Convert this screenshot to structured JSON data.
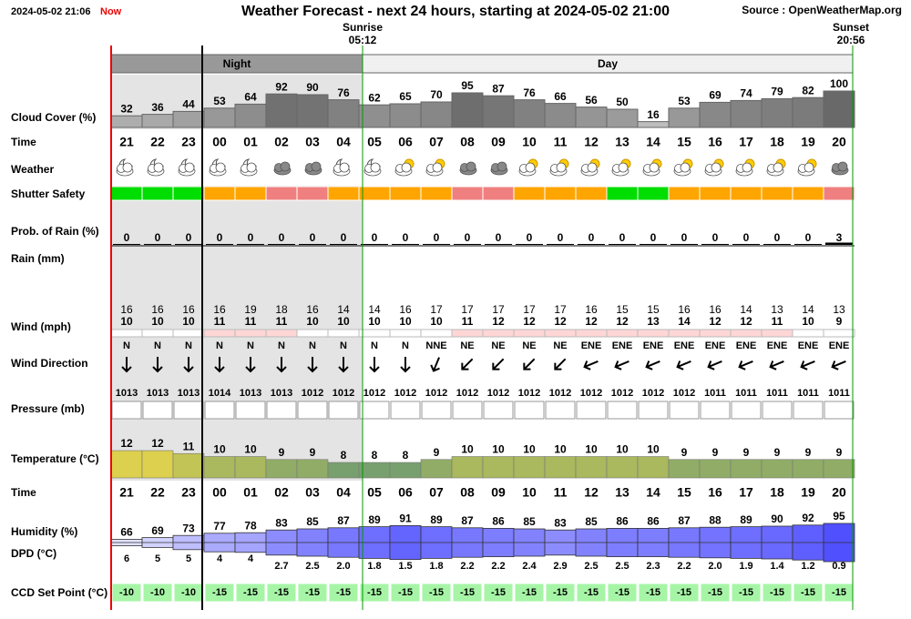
{
  "header": {
    "timestamp": "2024-05-02 21:06",
    "now": "Now",
    "title": "Weather Forecast - next 24 hours, starting at 2024-05-02 21:00",
    "source": "Source : OpenWeatherMap.org",
    "sunrise_label": "Sunrise",
    "sunrise": "05:12",
    "sunset_label": "Sunset",
    "sunset": "20:56"
  },
  "bands": {
    "night": "Night",
    "day": "Day"
  },
  "rows": {
    "cloud": {
      "label": "Cloud Cover (%)",
      "values": [
        32,
        36,
        44,
        53,
        64,
        92,
        90,
        76,
        62,
        65,
        70,
        95,
        87,
        76,
        66,
        56,
        50,
        16,
        53,
        69,
        74,
        79,
        82,
        100
      ]
    },
    "time": {
      "label": "Time",
      "values": [
        "21",
        "22",
        "23",
        "00",
        "01",
        "02",
        "03",
        "04",
        "05",
        "06",
        "07",
        "08",
        "09",
        "10",
        "11",
        "12",
        "13",
        "14",
        "15",
        "16",
        "17",
        "18",
        "19",
        "20"
      ]
    },
    "weather": {
      "label": "Weather",
      "icons": [
        "night-partly",
        "night-partly",
        "night-partly",
        "night-partly",
        "night-partly",
        "cloudy",
        "cloudy",
        "night-partly",
        "night-partly",
        "day-partly",
        "day-partly",
        "cloudy",
        "cloudy",
        "day-partly",
        "day-partly",
        "day-partly",
        "day-partly",
        "day-partly",
        "day-partly",
        "day-partly",
        "day-partly",
        "day-partly",
        "day-partly",
        "cloudy"
      ]
    },
    "shutter": {
      "label": "Shutter Safety",
      "colors": [
        "#00dd00",
        "#00dd00",
        "#00dd00",
        "#ffa500",
        "#ffa500",
        "#f08080",
        "#f08080",
        "#ffa500",
        "#ffa500",
        "#ffa500",
        "#ffa500",
        "#f08080",
        "#f08080",
        "#ffa500",
        "#ffa500",
        "#ffa500",
        "#00dd00",
        "#00dd00",
        "#ffa500",
        "#ffa500",
        "#ffa500",
        "#ffa500",
        "#ffa500",
        "#f08080"
      ]
    },
    "rain_prob": {
      "label": "Prob. of Rain (%)",
      "values": [
        0,
        0,
        0,
        0,
        0,
        0,
        0,
        0,
        0,
        0,
        0,
        0,
        0,
        0,
        0,
        0,
        0,
        0,
        0,
        0,
        0,
        0,
        0,
        3
      ]
    },
    "rain": {
      "label": "Rain (mm)"
    },
    "wind": {
      "label": "Wind (mph)",
      "gust": [
        16,
        16,
        16,
        16,
        19,
        18,
        16,
        14,
        14,
        16,
        17,
        17,
        17,
        17,
        17,
        16,
        15,
        15,
        16,
        16,
        14,
        13,
        14,
        13
      ],
      "speed": [
        10,
        10,
        10,
        11,
        11,
        11,
        10,
        10,
        10,
        10,
        10,
        11,
        12,
        12,
        12,
        12,
        12,
        13,
        14,
        12,
        12,
        11,
        10,
        9
      ]
    },
    "wind_dir": {
      "label": "Wind Direction",
      "values": [
        "N",
        "N",
        "N",
        "N",
        "N",
        "N",
        "N",
        "N",
        "N",
        "N",
        "NNE",
        "NE",
        "NE",
        "NE",
        "NE",
        "ENE",
        "ENE",
        "ENE",
        "ENE",
        "ENE",
        "ENE",
        "ENE",
        "ENE",
        "ENE"
      ]
    },
    "pressure": {
      "label": "Pressure (mb)",
      "values": [
        1013,
        1013,
        1013,
        1014,
        1013,
        1013,
        1012,
        1012,
        1012,
        1012,
        1012,
        1012,
        1012,
        1012,
        1012,
        1012,
        1012,
        1012,
        1012,
        1011,
        1011,
        1011,
        1011,
        1011
      ]
    },
    "temperature": {
      "label": "Temperature (°C)",
      "values": [
        12,
        12,
        11,
        10,
        10,
        9,
        9,
        8,
        8,
        8,
        9,
        10,
        10,
        10,
        10,
        10,
        10,
        10,
        9,
        9,
        9,
        9,
        9,
        9
      ]
    },
    "humidity": {
      "label": "Humidity (%)",
      "values": [
        66,
        69,
        73,
        77,
        78,
        83,
        85,
        87,
        89,
        91,
        89,
        87,
        86,
        85,
        83,
        85,
        86,
        86,
        87,
        88,
        89,
        90,
        92,
        95
      ]
    },
    "dpd": {
      "label": "DPD (°C)",
      "values": [
        "6",
        "5",
        "5",
        "4",
        "4",
        "2.7",
        "2.5",
        "2.0",
        "1.8",
        "1.5",
        "1.8",
        "2.2",
        "2.2",
        "2.4",
        "2.9",
        "2.5",
        "2.5",
        "2.3",
        "2.2",
        "2.0",
        "1.9",
        "1.4",
        "1.2",
        "0.9"
      ]
    },
    "ccd": {
      "label": "CCD Set Point (°C)",
      "values": [
        -10,
        -10,
        -10,
        -15,
        -15,
        -15,
        -15,
        -15,
        -15,
        -15,
        -15,
        -15,
        -15,
        -15,
        -15,
        -15,
        -15,
        -15,
        -15,
        -15,
        -15,
        -15,
        -15,
        -15
      ]
    }
  }
}
